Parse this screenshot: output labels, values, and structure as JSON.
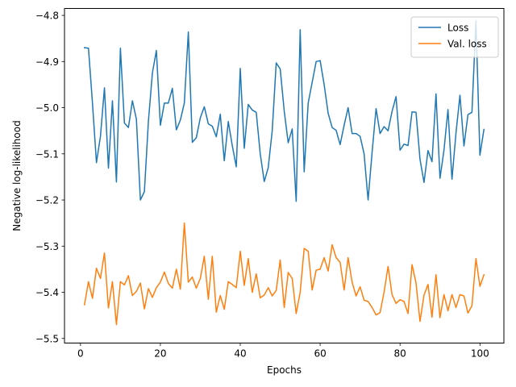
{
  "chart_data": {
    "type": "line",
    "title": "",
    "xlabel": "Epochs",
    "ylabel": "Negative log-likelihood",
    "xlim": [
      -4,
      106
    ],
    "ylim": [
      -5.51,
      -4.785
    ],
    "xticks": [
      0,
      20,
      40,
      60,
      80,
      100
    ],
    "yticks": [
      -5.5,
      -5.4,
      -5.3,
      -5.2,
      -5.1,
      -5.0,
      -4.9,
      -4.8
    ],
    "ytick_labels": [
      "−5.5",
      "−5.4",
      "−5.3",
      "−5.2",
      "−5.1",
      "−5.0",
      "−4.9",
      "−4.8"
    ],
    "grid": false,
    "legend_position": "top-right",
    "series": [
      {
        "name": "Loss",
        "color": "#1f77b4",
        "x": [
          1,
          2,
          3,
          4,
          5,
          6,
          7,
          8,
          9,
          10,
          11,
          12,
          13,
          14,
          15,
          16,
          17,
          18,
          19,
          20,
          21,
          22,
          23,
          24,
          25,
          26,
          27,
          28,
          29,
          30,
          31,
          32,
          33,
          34,
          35,
          36,
          37,
          38,
          39,
          40,
          41,
          42,
          43,
          44,
          45,
          46,
          47,
          48,
          49,
          50,
          51,
          52,
          53,
          54,
          55,
          56,
          57,
          58,
          59,
          60,
          61,
          62,
          63,
          64,
          65,
          66,
          67,
          68,
          69,
          70,
          71,
          72,
          73,
          74,
          75,
          76,
          77,
          78,
          79,
          80,
          81,
          82,
          83,
          84,
          85,
          86,
          87,
          88,
          89,
          90,
          91,
          92,
          93,
          94,
          95,
          96,
          97,
          98,
          99,
          100,
          101
        ],
        "values": [
          -4.87,
          -4.871,
          -4.99,
          -5.119,
          -5.062,
          -4.957,
          -5.131,
          -4.985,
          -5.161,
          -4.871,
          -5.033,
          -5.043,
          -4.985,
          -5.025,
          -5.2,
          -5.182,
          -5.03,
          -4.925,
          -4.876,
          -5.038,
          -4.99,
          -4.99,
          -4.958,
          -5.048,
          -5.027,
          -4.99,
          -4.836,
          -5.075,
          -5.065,
          -5.022,
          -4.998,
          -5.035,
          -5.04,
          -5.063,
          -5.014,
          -5.115,
          -5.03,
          -5.082,
          -5.128,
          -4.915,
          -5.088,
          -4.993,
          -5.005,
          -5.01,
          -5.1,
          -5.16,
          -5.13,
          -5.05,
          -4.903,
          -4.916,
          -5.007,
          -5.076,
          -5.046,
          -5.203,
          -4.831,
          -5.139,
          -4.99,
          -4.945,
          -4.9,
          -4.898,
          -4.95,
          -5.012,
          -5.043,
          -5.049,
          -5.08,
          -5.038,
          -5.0,
          -5.056,
          -5.056,
          -5.062,
          -5.1,
          -5.2,
          -5.097,
          -5.002,
          -5.056,
          -5.041,
          -5.05,
          -5.008,
          -4.976,
          -5.092,
          -5.079,
          -5.082,
          -5.009,
          -5.01,
          -5.112,
          -5.162,
          -5.093,
          -5.117,
          -4.97,
          -5.153,
          -5.092,
          -5.004,
          -5.155,
          -5.055,
          -4.973,
          -5.083,
          -5.015,
          -5.01,
          -4.812,
          -5.103,
          -5.047
        ]
      },
      {
        "name": "Val. loss",
        "color": "#ff7f0e",
        "x": [
          1,
          2,
          3,
          4,
          5,
          6,
          7,
          8,
          9,
          10,
          11,
          12,
          13,
          14,
          15,
          16,
          17,
          18,
          19,
          20,
          21,
          22,
          23,
          24,
          25,
          26,
          27,
          28,
          29,
          30,
          31,
          32,
          33,
          34,
          35,
          36,
          37,
          38,
          39,
          40,
          41,
          42,
          43,
          44,
          45,
          46,
          47,
          48,
          49,
          50,
          51,
          52,
          53,
          54,
          55,
          56,
          57,
          58,
          59,
          60,
          61,
          62,
          63,
          64,
          65,
          66,
          67,
          68,
          69,
          70,
          71,
          72,
          73,
          74,
          75,
          76,
          77,
          78,
          79,
          80,
          81,
          82,
          83,
          84,
          85,
          86,
          87,
          88,
          89,
          90,
          91,
          92,
          93,
          94,
          95,
          96,
          97,
          98,
          99,
          100,
          101
        ],
        "values": [
          -5.427,
          -5.377,
          -5.413,
          -5.348,
          -5.37,
          -5.315,
          -5.434,
          -5.377,
          -5.47,
          -5.377,
          -5.384,
          -5.364,
          -5.407,
          -5.398,
          -5.38,
          -5.436,
          -5.392,
          -5.411,
          -5.39,
          -5.378,
          -5.356,
          -5.381,
          -5.391,
          -5.35,
          -5.393,
          -5.25,
          -5.378,
          -5.367,
          -5.391,
          -5.37,
          -5.322,
          -5.415,
          -5.322,
          -5.443,
          -5.407,
          -5.437,
          -5.377,
          -5.383,
          -5.39,
          -5.311,
          -5.385,
          -5.327,
          -5.4,
          -5.36,
          -5.412,
          -5.406,
          -5.39,
          -5.408,
          -5.396,
          -5.33,
          -5.433,
          -5.357,
          -5.37,
          -5.446,
          -5.4,
          -5.305,
          -5.311,
          -5.395,
          -5.352,
          -5.35,
          -5.325,
          -5.354,
          -5.297,
          -5.325,
          -5.335,
          -5.395,
          -5.325,
          -5.378,
          -5.408,
          -5.388,
          -5.417,
          -5.42,
          -5.433,
          -5.449,
          -5.444,
          -5.4,
          -5.344,
          -5.405,
          -5.424,
          -5.416,
          -5.42,
          -5.446,
          -5.34,
          -5.38,
          -5.463,
          -5.406,
          -5.383,
          -5.454,
          -5.362,
          -5.455,
          -5.405,
          -5.44,
          -5.405,
          -5.433,
          -5.405,
          -5.408,
          -5.445,
          -5.429,
          -5.327,
          -5.387,
          -5.362
        ]
      }
    ]
  }
}
